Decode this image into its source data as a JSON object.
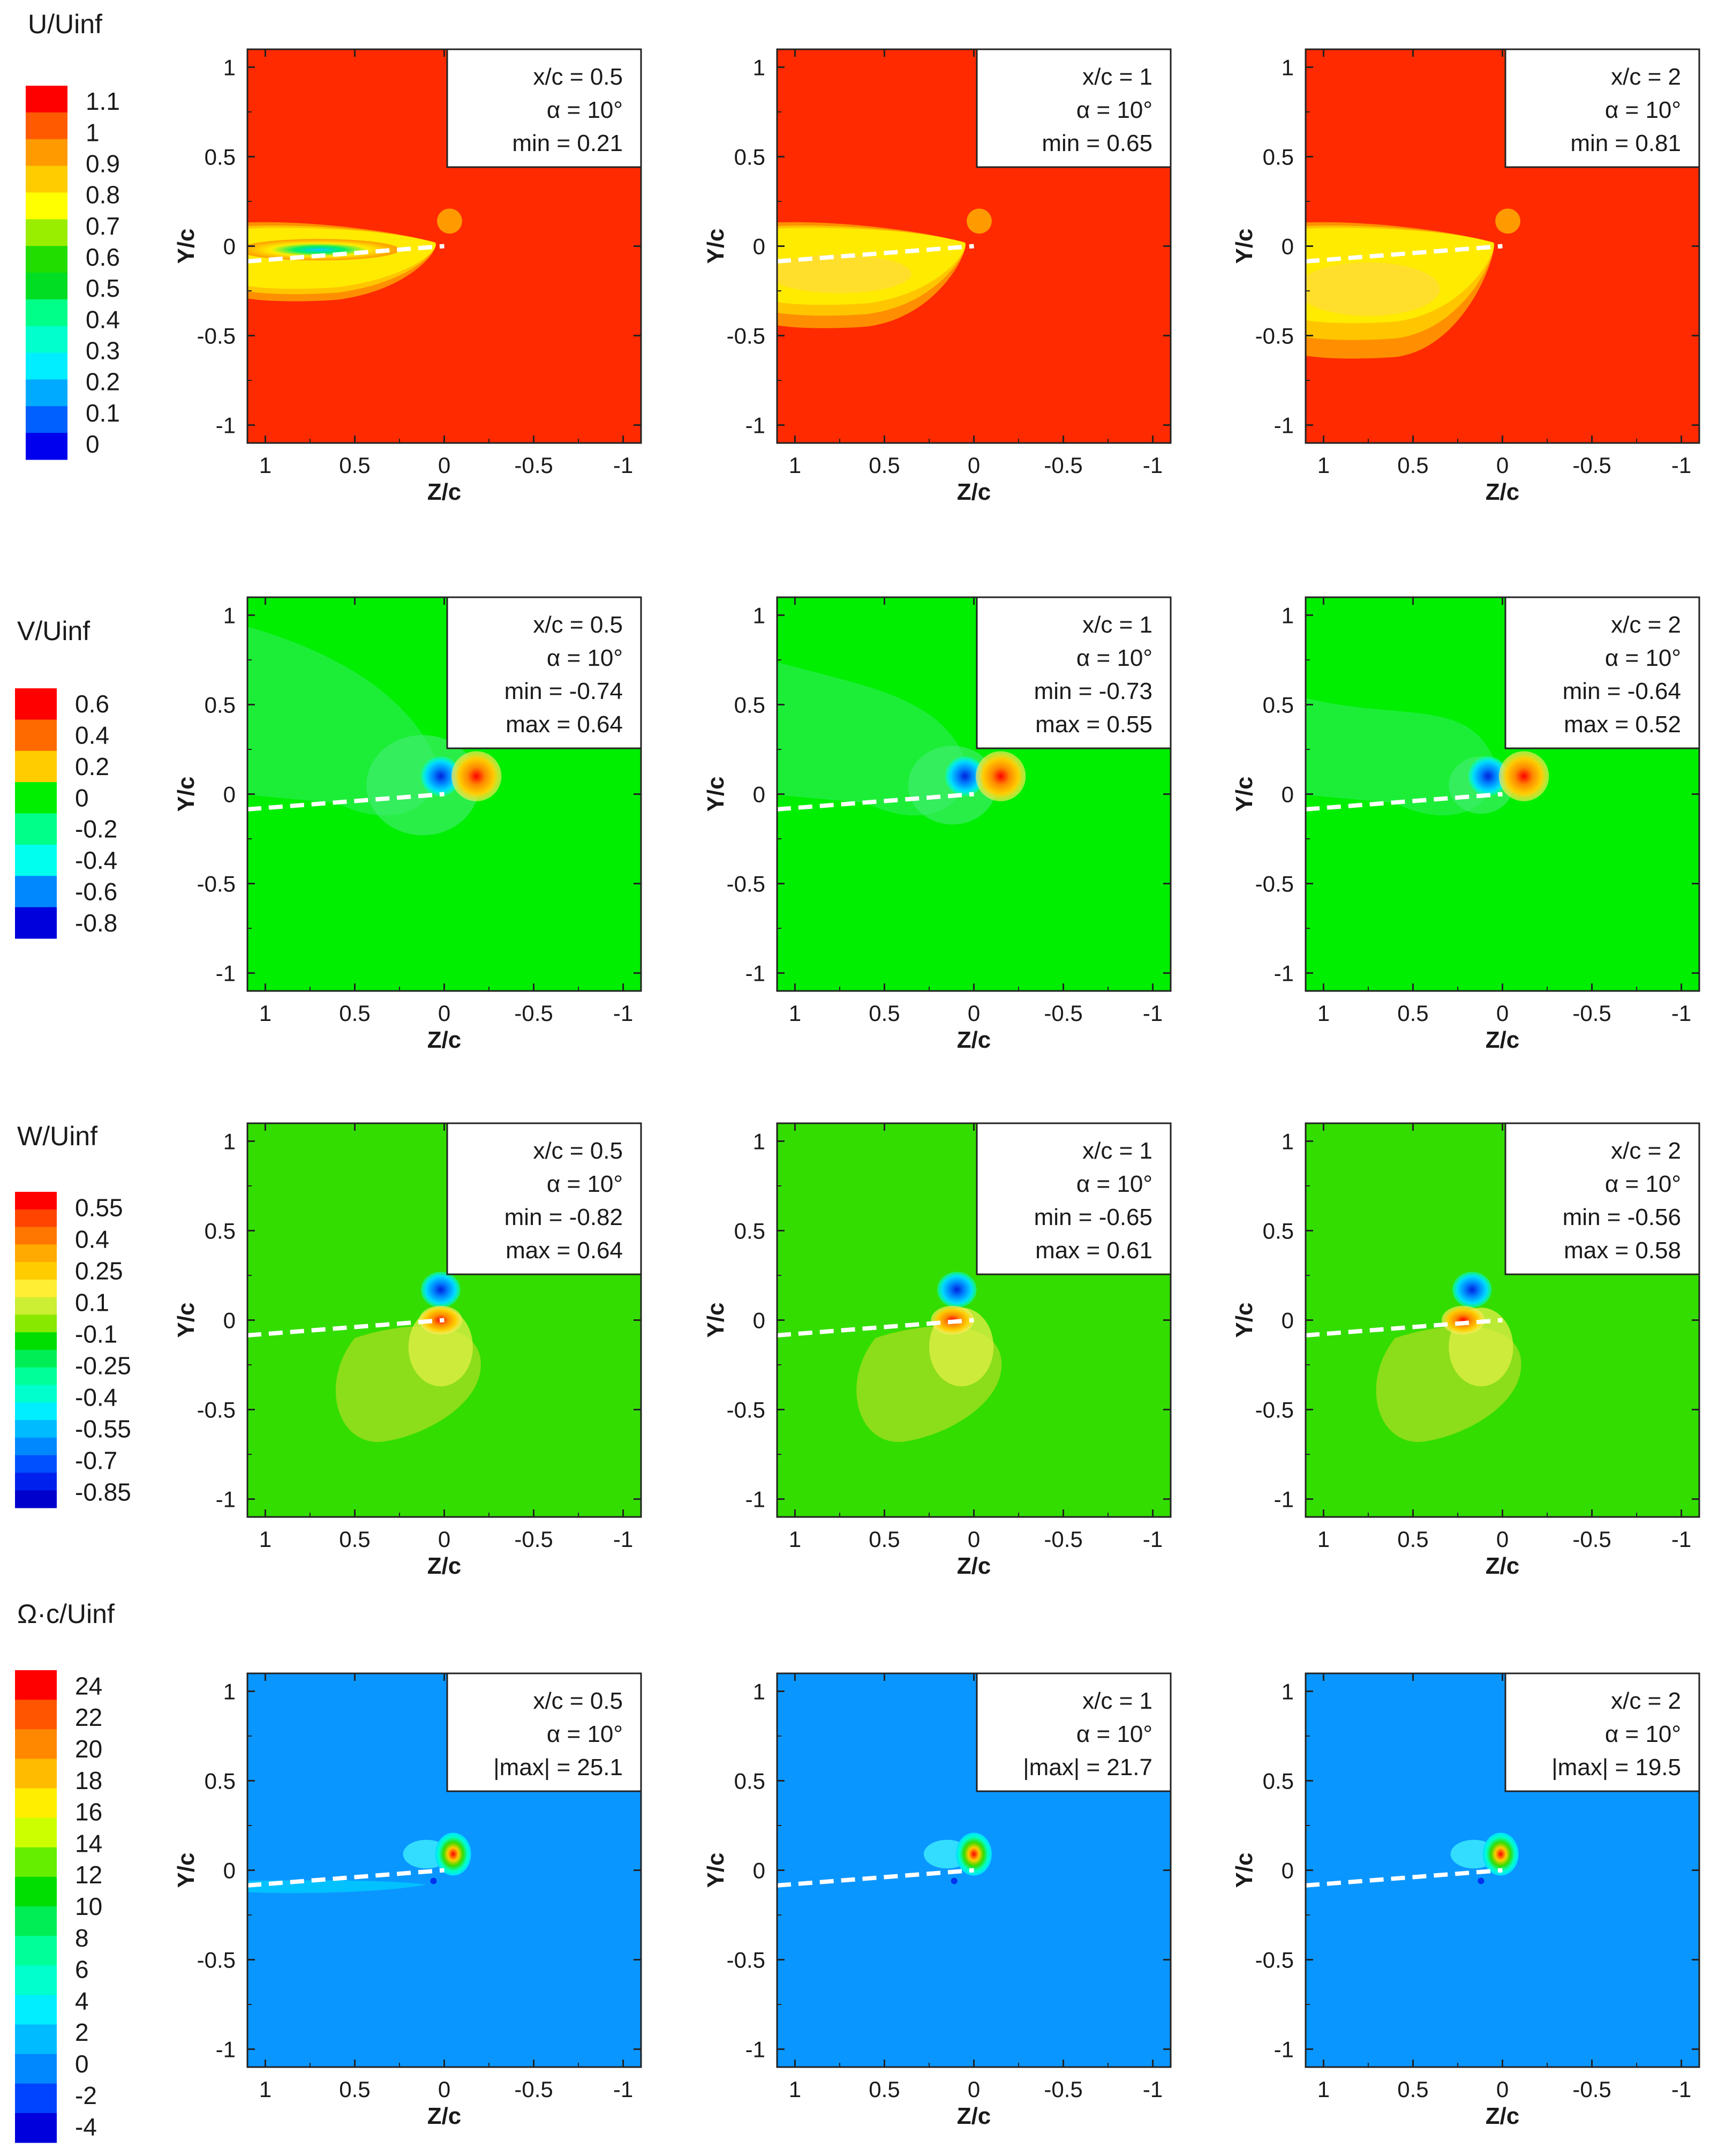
{
  "chart_data": [
    {
      "type": "heatmap",
      "variable": "U/Uinf",
      "colorbar_ticks": [
        "1.1",
        "1",
        "0.9",
        "0.8",
        "0.7",
        "0.6",
        "0.5",
        "0.4",
        "0.3",
        "0.2",
        "0.1",
        "0"
      ],
      "colorbar_colors": [
        "#ff0000",
        "#ff5a00",
        "#ff9a00",
        "#ffcc00",
        "#ffff00",
        "#99ee00",
        "#22dd00",
        "#00dd22",
        "#00ff88",
        "#00ffcc",
        "#00eeff",
        "#00aaff",
        "#0060ff",
        "#0000ee"
      ],
      "background_color": "#ff2a00",
      "panels": [
        {
          "x_c": "x/c = 0.5",
          "alpha": "α = 10°",
          "stats": [
            "min = 0.21"
          ]
        },
        {
          "x_c": "x/c = 1",
          "alpha": "α = 10°",
          "stats": [
            "min = 0.65"
          ]
        },
        {
          "x_c": "x/c = 2",
          "alpha": "α = 10°",
          "stats": [
            "min = 0.81"
          ]
        }
      ]
    },
    {
      "type": "heatmap",
      "variable": "V/Uinf",
      "colorbar_ticks": [
        "0.6",
        "0.4",
        "0.2",
        "0",
        "-0.2",
        "-0.4",
        "-0.6",
        "-0.8"
      ],
      "colorbar_colors": [
        "#ff0000",
        "#ff6a00",
        "#ffcc00",
        "#00ee00",
        "#00ff88",
        "#00ffee",
        "#0088ff",
        "#0000dd"
      ],
      "background_color": "#00ee00",
      "panels": [
        {
          "x_c": "x/c = 0.5",
          "alpha": "α = 10°",
          "stats": [
            "min = -0.74",
            "max = 0.64"
          ]
        },
        {
          "x_c": "x/c = 1",
          "alpha": "α = 10°",
          "stats": [
            "min = -0.73",
            "max = 0.55"
          ]
        },
        {
          "x_c": "x/c = 2",
          "alpha": "α = 10°",
          "stats": [
            "min = -0.64",
            "max = 0.52"
          ]
        }
      ]
    },
    {
      "type": "heatmap",
      "variable": "W/Uinf",
      "colorbar_ticks": [
        "0.55",
        "0.4",
        "0.25",
        "0.1",
        "-0.1",
        "-0.25",
        "-0.4",
        "-0.55",
        "-0.7",
        "-0.85"
      ],
      "colorbar_colors": [
        "#ff0000",
        "#ff4400",
        "#ff7700",
        "#ffaa00",
        "#ffcc00",
        "#ffee33",
        "#ccee33",
        "#88e800",
        "#00dd00",
        "#00ee55",
        "#00ff99",
        "#00ffcc",
        "#00eeff",
        "#00bbff",
        "#0088ff",
        "#0050ff",
        "#0020ee",
        "#0000cc"
      ],
      "background_color": "#33dd00",
      "panels": [
        {
          "x_c": "x/c = 0.5",
          "alpha": "α = 10°",
          "stats": [
            "min = -0.82",
            "max = 0.64"
          ]
        },
        {
          "x_c": "x/c = 1",
          "alpha": "α = 10°",
          "stats": [
            "min = -0.65",
            "max = 0.61"
          ]
        },
        {
          "x_c": "x/c = 2",
          "alpha": "α = 10°",
          "stats": [
            "min = -0.56",
            "max = 0.58"
          ]
        }
      ]
    },
    {
      "type": "heatmap",
      "variable": "Ω·c/Uinf",
      "colorbar_ticks": [
        "24",
        "22",
        "20",
        "18",
        "16",
        "14",
        "12",
        "10",
        "8",
        "6",
        "4",
        "2",
        "0",
        "-2",
        "-4"
      ],
      "colorbar_colors": [
        "#ff0000",
        "#ff5500",
        "#ff8800",
        "#ffbb00",
        "#ffee00",
        "#ccff00",
        "#66ee00",
        "#00dd00",
        "#00ee55",
        "#00ff99",
        "#00ffcc",
        "#00eeff",
        "#00bbff",
        "#0088ff",
        "#0044ff",
        "#0000dd"
      ],
      "background_color": "#0a96ff",
      "panels": [
        {
          "x_c": "x/c = 0.5",
          "alpha": "α = 10°",
          "stats": [
            "|max| = 25.1"
          ]
        },
        {
          "x_c": "x/c = 1",
          "alpha": "α = 10°",
          "stats": [
            "|max| = 21.7"
          ]
        },
        {
          "x_c": "x/c = 2",
          "alpha": "α = 10°",
          "stats": [
            "|max| = 19.5"
          ]
        }
      ]
    }
  ],
  "axes": {
    "xlabel": "Z/c",
    "ylabel": "Y/c",
    "xlim": [
      1.1,
      -1.1
    ],
    "ylim": [
      -1.1,
      1.1
    ],
    "x_ticks": [
      "1",
      "0.5",
      "0",
      "-0.5",
      "-1"
    ],
    "y_ticks": [
      "1",
      "0.5",
      "0",
      "-0.5",
      "-1"
    ]
  }
}
